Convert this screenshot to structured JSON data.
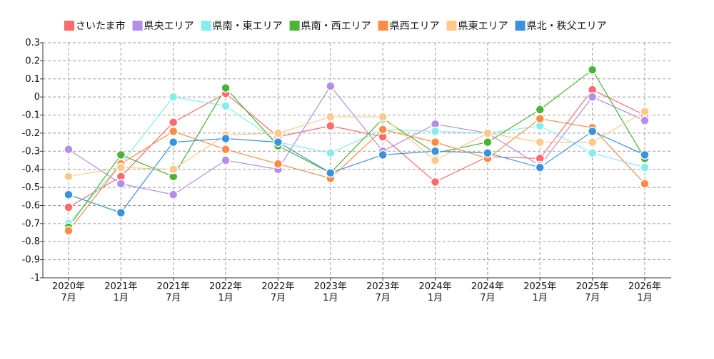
{
  "chart_data": {
    "type": "line",
    "title": "",
    "xlabel": "",
    "ylabel": "",
    "ylim": [
      -1,
      0.3
    ],
    "yticks": [
      "0.3",
      "0.2",
      "0.1",
      "0",
      "-0.1",
      "-0.2",
      "-0.3",
      "-0.4",
      "-0.5",
      "-0.6",
      "-0.7",
      "-0.8",
      "-0.9",
      "-1"
    ],
    "ytick_values": [
      0.3,
      0.2,
      0.1,
      0,
      -0.1,
      -0.2,
      -0.3,
      -0.4,
      -0.5,
      -0.6,
      -0.7,
      -0.8,
      -0.9,
      -1
    ],
    "categories": [
      [
        "2020年",
        "7月"
      ],
      [
        "2021年",
        "1月"
      ],
      [
        "2021年",
        "7月"
      ],
      [
        "2022年",
        "1月"
      ],
      [
        "2022年",
        "7月"
      ],
      [
        "2023年",
        "1月"
      ],
      [
        "2023年",
        "7月"
      ],
      [
        "2024年",
        "1月"
      ],
      [
        "2024年",
        "7月"
      ],
      [
        "2025年",
        "1月"
      ],
      [
        "2025年",
        "7月"
      ],
      [
        "2026年",
        "1月"
      ]
    ],
    "grid": true,
    "legend_position": "top",
    "series": [
      {
        "name": "さいたま市",
        "color": "#ff6b6b",
        "values": [
          -0.61,
          -0.44,
          -0.14,
          0.02,
          -0.22,
          -0.16,
          -0.22,
          -0.47,
          -0.33,
          -0.34,
          0.04,
          -0.1
        ]
      },
      {
        "name": "県央エリア",
        "color": "#b38eeb",
        "values": [
          -0.29,
          -0.48,
          -0.54,
          -0.35,
          -0.4,
          0.06,
          -0.3,
          -0.15,
          -0.2,
          -0.38,
          0.0,
          -0.13
        ]
      },
      {
        "name": "県南・東エリア",
        "color": "#86eded",
        "values": [
          -0.7,
          -0.37,
          0.0,
          -0.05,
          -0.25,
          -0.31,
          -0.18,
          -0.19,
          -0.2,
          -0.16,
          -0.31,
          -0.39
        ]
      },
      {
        "name": "県南・西エリア",
        "color": "#4db335",
        "values": [
          -0.72,
          -0.32,
          -0.44,
          0.05,
          -0.27,
          -0.42,
          -0.12,
          -0.31,
          -0.25,
          -0.07,
          0.15,
          -0.34
        ]
      },
      {
        "name": "県西エリア",
        "color": "#ff8c45",
        "values": [
          -0.74,
          -0.37,
          -0.19,
          -0.29,
          -0.37,
          -0.45,
          -0.18,
          -0.25,
          -0.34,
          -0.12,
          -0.17,
          -0.48
        ]
      },
      {
        "name": "県東エリア",
        "color": "#ffc98a",
        "values": [
          -0.44,
          -0.39,
          -0.4,
          -0.21,
          -0.2,
          -0.11,
          -0.11,
          -0.35,
          -0.2,
          -0.25,
          -0.25,
          -0.08
        ]
      },
      {
        "name": "県北・秩父エリア",
        "color": "#3a92dd",
        "values": [
          -0.54,
          -0.64,
          -0.25,
          -0.23,
          -0.25,
          -0.42,
          -0.32,
          -0.3,
          -0.31,
          -0.39,
          -0.19,
          -0.32
        ]
      }
    ]
  }
}
